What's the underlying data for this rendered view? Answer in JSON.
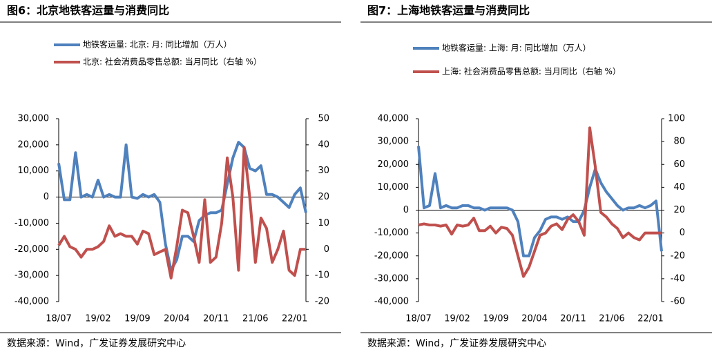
{
  "chart_data": [
    {
      "type": "line",
      "title": "图6：北京地铁客运量与消费同比",
      "source": "数据来源：Wind，广发证券发展研究中心",
      "categories": [
        "18/07",
        null,
        null,
        null,
        null,
        null,
        null,
        "19/02",
        null,
        null,
        null,
        null,
        null,
        null,
        "19/09",
        null,
        null,
        null,
        null,
        null,
        null,
        "20/04",
        null,
        null,
        null,
        null,
        null,
        null,
        "20/11",
        null,
        null,
        null,
        null,
        null,
        null,
        "21/06",
        null,
        null,
        null,
        null,
        null,
        null,
        "22/01",
        null,
        null
      ],
      "series": [
        {
          "name": "地铁客运量: 北京: 月: 同比增加（万人）",
          "color": "#4f81bd",
          "values": [
            13000,
            -1000,
            -1000,
            17000,
            0,
            1000,
            0,
            6500,
            0,
            1000,
            0,
            0,
            20000,
            0,
            -500,
            1000,
            0,
            1000,
            -2000,
            -18000,
            -28000,
            -24000,
            -15000,
            -15000,
            -17000,
            -9000,
            -7000,
            -6000,
            -6000,
            -5000,
            5000,
            15000,
            21000,
            19000,
            11000,
            10000,
            12000,
            1000,
            1000,
            0,
            -2000,
            -4000,
            1000,
            3500,
            -6000
          ]
        },
        {
          "name": "北京: 社会消费品零售总额: 当月同比（右轴 %）",
          "color": "#c0504d",
          "axis": "y2",
          "values": [
            1.5,
            5,
            1,
            0,
            -3,
            0,
            0,
            1,
            3,
            9,
            5,
            6,
            5,
            5,
            2,
            7,
            6,
            -2,
            -1,
            0,
            -11,
            1,
            15,
            14,
            5,
            -5,
            19,
            -5,
            -3,
            10,
            35,
            20,
            -8,
            39,
            20,
            -5,
            12,
            8,
            -5,
            0,
            7,
            -8,
            -10,
            0,
            0
          ]
        }
      ],
      "ylim": [
        -40000,
        30000
      ],
      "yticks": [
        {
          "value": -40000,
          "label": "-40,000"
        },
        {
          "value": -30000,
          "label": "-30,000"
        },
        {
          "value": -20000,
          "label": "-20,000"
        },
        {
          "value": -10000,
          "label": "-10,000"
        },
        0,
        {
          "value": 10000,
          "label": "10,000"
        },
        {
          "value": 20000,
          "label": "20,000"
        },
        {
          "value": 30000,
          "label": "30,000"
        }
      ],
      "y2lim": [
        -20,
        50
      ],
      "y2ticks": [
        -20,
        -10,
        0,
        10,
        20,
        30,
        40,
        50
      ]
    },
    {
      "type": "line",
      "title": "图7：上海地铁客运量与消费同比",
      "source": "数据来源：Wind，广发证券发展研究中心",
      "categories": [
        "18/07",
        null,
        null,
        null,
        null,
        null,
        null,
        "19/02",
        null,
        null,
        null,
        null,
        null,
        null,
        "19/09",
        null,
        null,
        null,
        null,
        null,
        null,
        "20/04",
        null,
        null,
        null,
        null,
        null,
        null,
        "20/11",
        null,
        null,
        null,
        null,
        null,
        null,
        "21/06",
        null,
        null,
        null,
        null,
        null,
        null,
        "22/01",
        null,
        null
      ],
      "series": [
        {
          "name": "地铁客运量: 上海: 月: 同比增加（万人）",
          "color": "#4f81bd",
          "values": [
            28000,
            1000,
            2000,
            16000,
            1000,
            2000,
            1000,
            1000,
            2000,
            2000,
            1000,
            1000,
            0,
            1000,
            1000,
            1000,
            1000,
            0,
            -5000,
            -20000,
            -20000,
            -12000,
            -9000,
            -4000,
            -3000,
            -3000,
            -4000,
            -3000,
            -5000,
            -5000,
            0,
            10000,
            18000,
            12000,
            8000,
            5000,
            2000,
            0,
            1000,
            1000,
            2000,
            1000,
            2000,
            4000,
            -18000
          ]
        },
        {
          "name": "上海: 社会消费品零售总额: 当月同比（右轴 %）",
          "color": "#c0504d",
          "axis": "y2",
          "values": [
            7,
            8,
            7,
            7,
            6,
            7,
            -1,
            7,
            6,
            7,
            13,
            2,
            2,
            6,
            0,
            5,
            4,
            -2,
            -20,
            -38,
            -30,
            -16,
            -2,
            0,
            6,
            8,
            3,
            12,
            16,
            10,
            -2,
            92,
            58,
            18,
            14,
            8,
            4,
            -4,
            0,
            -4,
            -6,
            0,
            0,
            0,
            0
          ]
        }
      ],
      "ylim": [
        -40000,
        40000
      ],
      "yticks": [
        {
          "value": -40000,
          "label": "-40,000"
        },
        {
          "value": -30000,
          "label": "-30,000"
        },
        {
          "value": -20000,
          "label": "-20,000"
        },
        {
          "value": -10000,
          "label": "-10,000"
        },
        0,
        {
          "value": 10000,
          "label": "10,000"
        },
        {
          "value": 20000,
          "label": "20,000"
        },
        {
          "value": 30000,
          "label": "30,000"
        },
        {
          "value": 40000,
          "label": "40,000"
        }
      ],
      "y2lim": [
        -60,
        100
      ],
      "y2ticks": [
        -60,
        -40,
        -20,
        0,
        20,
        40,
        60,
        80,
        100
      ]
    }
  ]
}
